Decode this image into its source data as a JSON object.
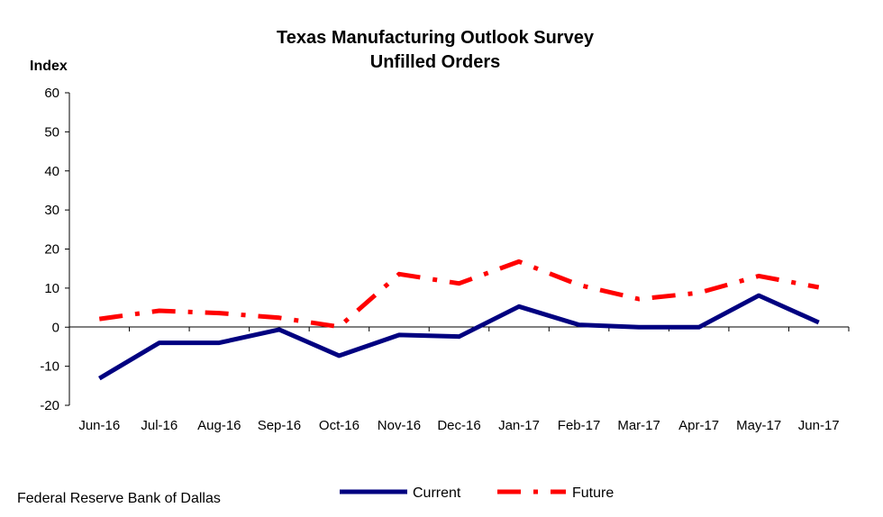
{
  "chart_data": {
    "type": "line",
    "title": "Texas Manufacturing Outlook Survey",
    "subtitle": "Unfilled Orders",
    "ylabel": "Index",
    "xlabel": "",
    "ylim": [
      -20,
      60
    ],
    "yticks": [
      -20,
      -10,
      0,
      10,
      20,
      30,
      40,
      50,
      60
    ],
    "grid": false,
    "legend_position": "bottom",
    "categories": [
      "Jun-16",
      "Jul-16",
      "Aug-16",
      "Sep-16",
      "Oct-16",
      "Nov-16",
      "Dec-16",
      "Jan-17",
      "Feb-17",
      "Mar-17",
      "Apr-17",
      "May-17",
      "Jun-17"
    ],
    "series": [
      {
        "name": "Current",
        "color": "#000080",
        "style": "solid",
        "values": [
          -13.1,
          -4.0,
          -4.0,
          -0.6,
          -7.3,
          -2.0,
          -2.4,
          5.3,
          0.6,
          0.0,
          0.0,
          8.1,
          1.2
        ]
      },
      {
        "name": "Future",
        "color": "#ff0000",
        "style": "dash-dot",
        "values": [
          2.1,
          4.2,
          3.6,
          2.4,
          0.1,
          13.6,
          11.2,
          16.8,
          10.8,
          7.2,
          8.8,
          13.1,
          10.2
        ]
      }
    ]
  },
  "source": "Federal Reserve Bank of Dallas"
}
